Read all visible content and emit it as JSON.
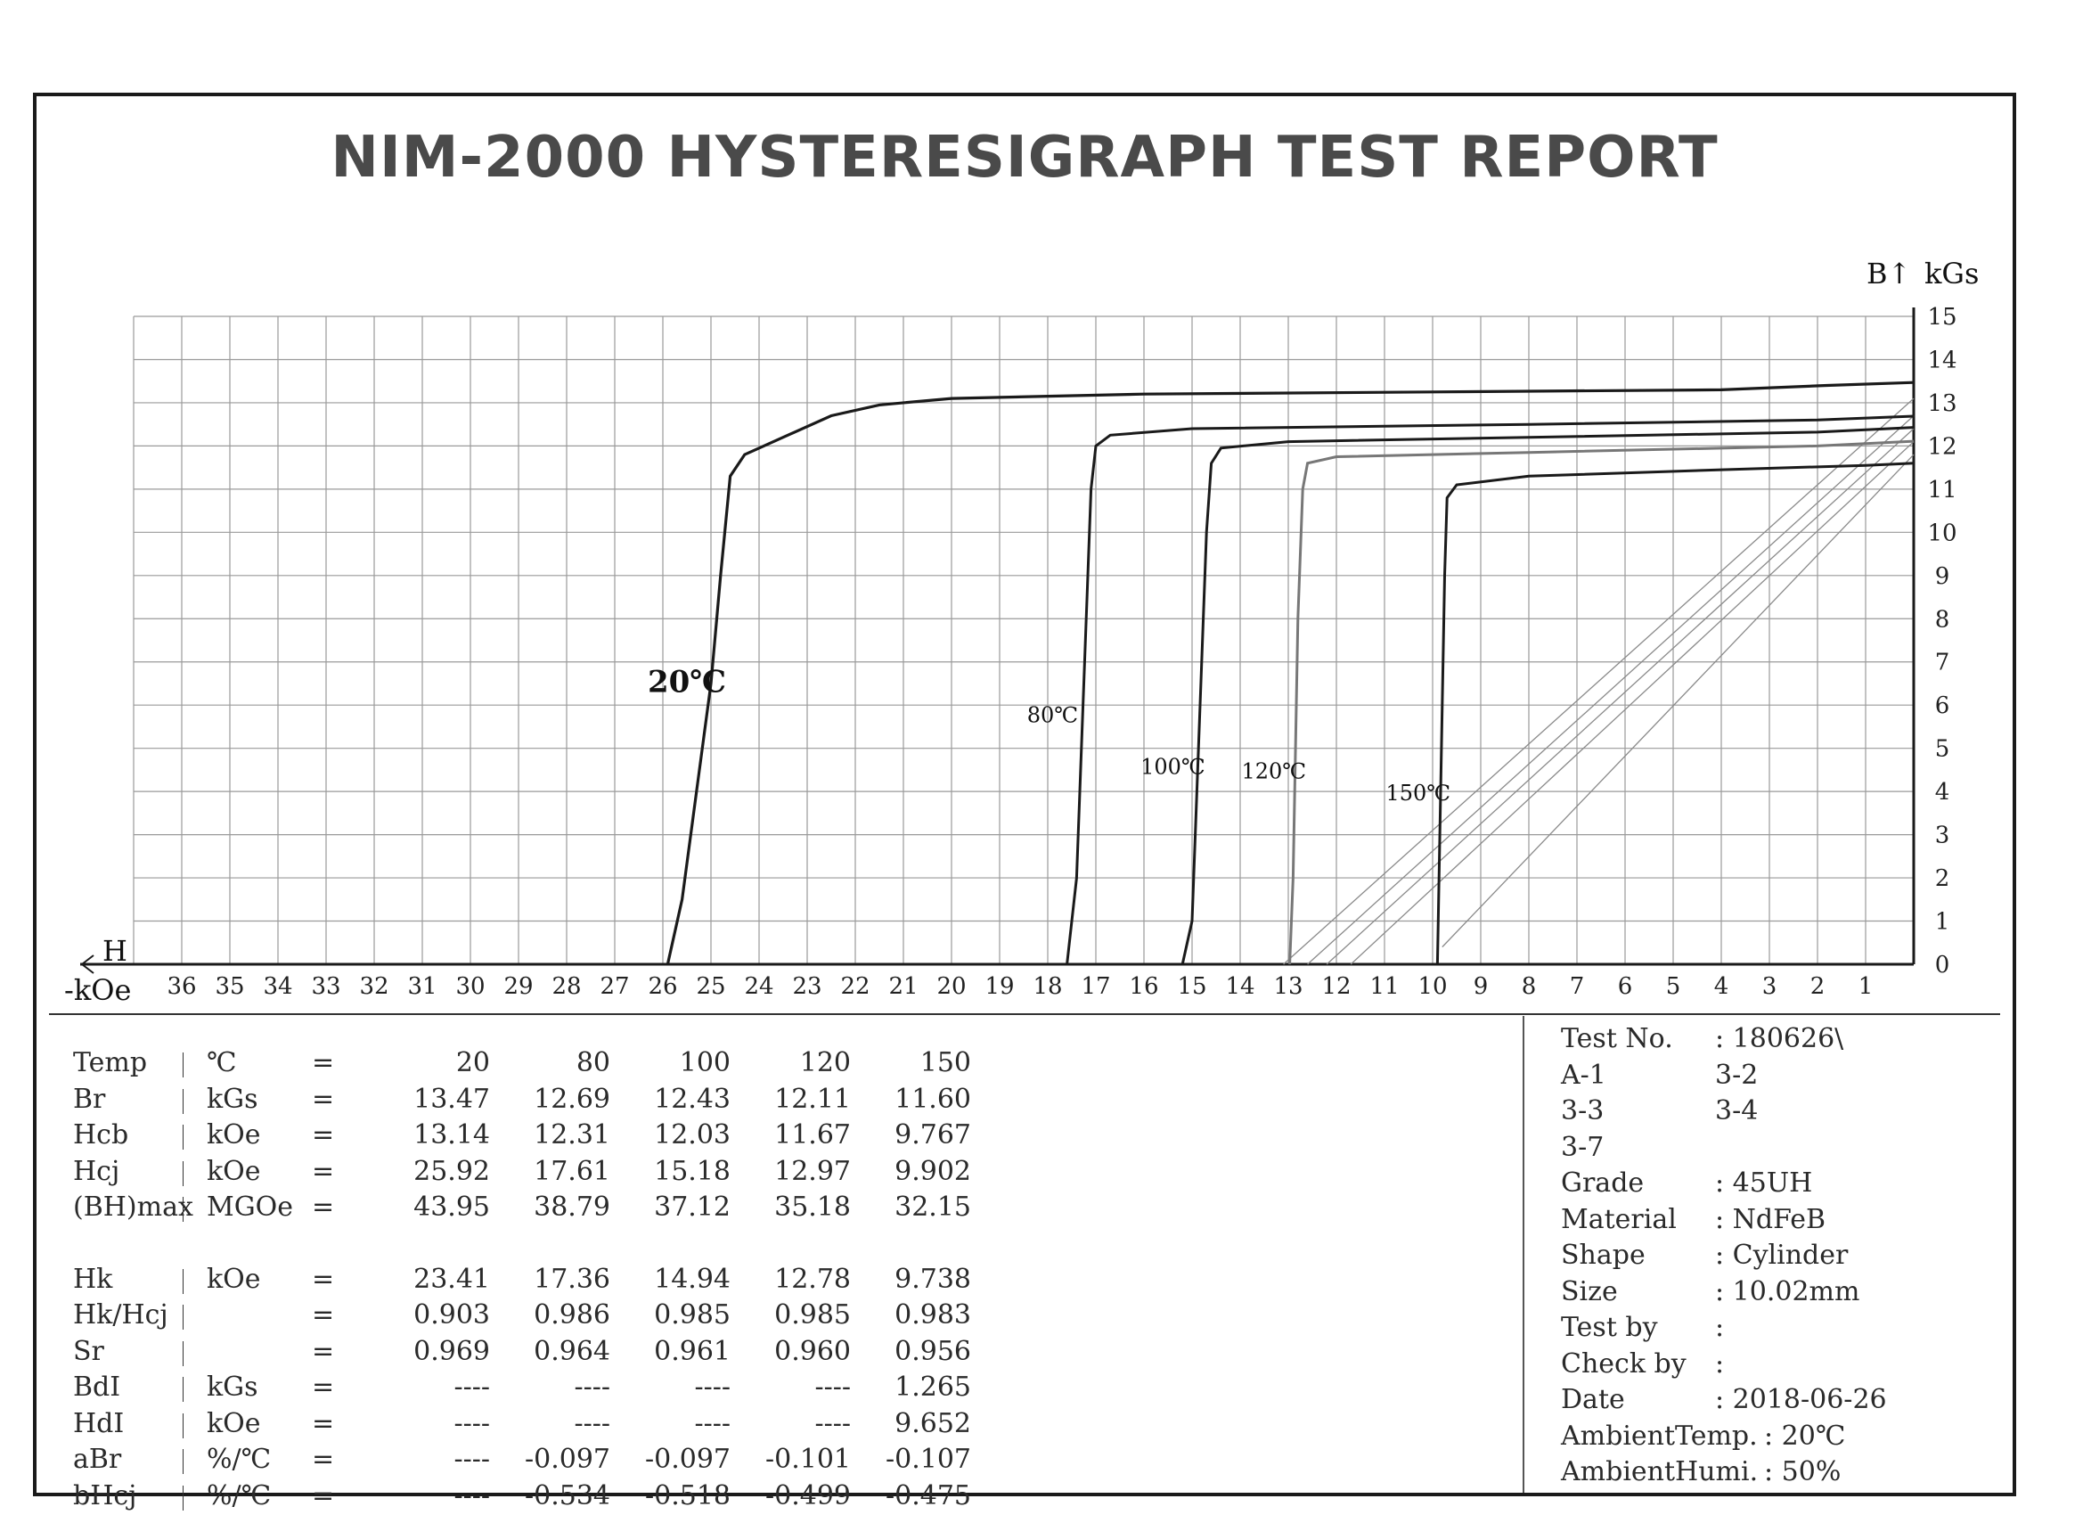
{
  "title": "NIM-2000 HYSTERESIGRAPH TEST REPORT",
  "chart_data": {
    "type": "line",
    "x_axis": {
      "label": "H",
      "unit": "-kOe",
      "range": [
        37,
        0
      ],
      "ticks": [
        36,
        35,
        34,
        33,
        32,
        31,
        30,
        29,
        28,
        27,
        26,
        25,
        24,
        23,
        22,
        21,
        20,
        19,
        18,
        17,
        16,
        15,
        14,
        13,
        12,
        11,
        10,
        9,
        8,
        7,
        6,
        5,
        4,
        3,
        2,
        1
      ]
    },
    "y_axis": {
      "label": "B↑",
      "unit": "kGs",
      "range": [
        0,
        15
      ],
      "ticks": [
        0,
        1,
        2,
        3,
        4,
        5,
        6,
        7,
        8,
        9,
        10,
        11,
        12,
        13,
        14,
        15
      ]
    },
    "grid": true,
    "series": [
      {
        "name": "20℃",
        "color": "#1a1a1a",
        "points": [
          [
            0,
            13.47
          ],
          [
            1.8,
            13.4
          ],
          [
            4,
            13.3
          ],
          [
            10,
            13.25
          ],
          [
            16,
            13.2
          ],
          [
            20,
            13.1
          ],
          [
            21.5,
            12.95
          ],
          [
            22.5,
            12.7
          ],
          [
            23.5,
            12.2
          ],
          [
            24.3,
            11.8
          ],
          [
            24.6,
            11.3
          ],
          [
            24.8,
            9
          ],
          [
            25.0,
            6.5
          ],
          [
            25.3,
            4
          ],
          [
            25.6,
            1.5
          ],
          [
            25.9,
            0
          ]
        ]
      },
      {
        "name": "80℃",
        "color": "#1a1a1a",
        "points": [
          [
            0,
            12.69
          ],
          [
            2,
            12.6
          ],
          [
            8,
            12.5
          ],
          [
            15,
            12.4
          ],
          [
            16.7,
            12.25
          ],
          [
            17.0,
            12.0
          ],
          [
            17.1,
            11
          ],
          [
            17.2,
            8
          ],
          [
            17.3,
            5
          ],
          [
            17.4,
            2
          ],
          [
            17.6,
            0
          ]
        ]
      },
      {
        "name": "100℃",
        "color": "#1a1a1a",
        "points": [
          [
            0,
            12.43
          ],
          [
            2,
            12.32
          ],
          [
            8,
            12.2
          ],
          [
            13,
            12.1
          ],
          [
            14.4,
            11.95
          ],
          [
            14.6,
            11.6
          ],
          [
            14.7,
            10
          ],
          [
            14.8,
            7
          ],
          [
            14.9,
            4
          ],
          [
            15.0,
            1
          ],
          [
            15.2,
            0
          ]
        ]
      },
      {
        "name": "120℃",
        "color": "#777777",
        "points": [
          [
            0,
            12.11
          ],
          [
            2,
            12.0
          ],
          [
            8,
            11.85
          ],
          [
            12,
            11.75
          ],
          [
            12.6,
            11.6
          ],
          [
            12.7,
            11
          ],
          [
            12.8,
            8
          ],
          [
            12.85,
            5
          ],
          [
            12.9,
            2
          ],
          [
            12.97,
            0
          ]
        ]
      },
      {
        "name": "150℃",
        "color": "#1a1a1a",
        "points": [
          [
            0,
            11.6
          ],
          [
            1,
            11.55
          ],
          [
            4,
            11.45
          ],
          [
            8,
            11.3
          ],
          [
            9.5,
            11.1
          ],
          [
            9.7,
            10.8
          ],
          [
            9.75,
            9
          ],
          [
            9.8,
            6
          ],
          [
            9.85,
            3
          ],
          [
            9.9,
            0
          ]
        ]
      }
    ],
    "recoil_lines": [
      {
        "from": [
          0,
          13.1
        ],
        "to": [
          13.1,
          0
        ]
      },
      {
        "from": [
          0,
          12.7
        ],
        "to": [
          12.6,
          0
        ]
      },
      {
        "from": [
          0,
          12.4
        ],
        "to": [
          12.2,
          0
        ]
      },
      {
        "from": [
          0,
          12.1
        ],
        "to": [
          11.7,
          0
        ]
      },
      {
        "from": [
          0,
          11.8
        ],
        "to": [
          9.8,
          0.4
        ]
      }
    ]
  },
  "results": {
    "rows": [
      {
        "name": "Temp",
        "unit": "℃",
        "eq": "=",
        "values": [
          "20",
          "80",
          "100",
          "120",
          "150"
        ]
      },
      {
        "name": "Br",
        "unit": "kGs",
        "eq": "=",
        "values": [
          "13.47",
          "12.69",
          "12.43",
          "12.11",
          "11.60"
        ]
      },
      {
        "name": "Hcb",
        "unit": "kOe",
        "eq": "=",
        "values": [
          "13.14",
          "12.31",
          "12.03",
          "11.67",
          "9.767"
        ]
      },
      {
        "name": "Hcj",
        "unit": "kOe",
        "eq": "=",
        "values": [
          "25.92",
          "17.61",
          "15.18",
          "12.97",
          "9.902"
        ]
      },
      {
        "name": "(BH)max",
        "unit": "MGOe",
        "eq": "=",
        "values": [
          "43.95",
          "38.79",
          "37.12",
          "35.18",
          "32.15"
        ]
      },
      {
        "name": "Hk",
        "unit": "kOe",
        "eq": "=",
        "values": [
          "23.41",
          "17.36",
          "14.94",
          "12.78",
          "9.738"
        ]
      },
      {
        "name": "Hk/Hcj",
        "unit": "",
        "eq": "=",
        "values": [
          "0.903",
          "0.986",
          "0.985",
          "0.985",
          "0.983"
        ]
      },
      {
        "name": "Sr",
        "unit": "",
        "eq": "=",
        "values": [
          "0.969",
          "0.964",
          "0.961",
          "0.960",
          "0.956"
        ]
      },
      {
        "name": "BdI",
        "unit": "kGs",
        "eq": "=",
        "values": [
          "----",
          "----",
          "----",
          "----",
          "1.265"
        ]
      },
      {
        "name": "HdI",
        "unit": "kOe",
        "eq": "=",
        "values": [
          "----",
          "----",
          "----",
          "----",
          "9.652"
        ]
      },
      {
        "name": "aBr",
        "unit": "%/℃",
        "eq": "=",
        "values": [
          "----",
          "-0.097",
          "-0.097",
          "-0.101",
          "-0.107"
        ]
      },
      {
        "name": "bHcj",
        "unit": "%/℃",
        "eq": "=",
        "values": [
          "----",
          "-0.534",
          "-0.518",
          "-0.499",
          "-0.475"
        ]
      }
    ]
  },
  "info": {
    "rows": [
      {
        "k": "Test No.",
        "v": ": 180626\\"
      },
      {
        "k": "A-1",
        "v": "  3-2"
      },
      {
        "k": "3-3",
        "v": "  3-4"
      },
      {
        "k": "3-7",
        "v": ""
      },
      {
        "k": "Grade",
        "v": ": 45UH"
      },
      {
        "k": "Material",
        "v": ": NdFeB"
      },
      {
        "k": "Shape",
        "v": ": Cylinder"
      },
      {
        "k": "Size",
        "v": ": 10.02mm"
      },
      {
        "k": "Test by",
        "v": ":"
      },
      {
        "k": "Check by",
        "v": ":"
      },
      {
        "k": "Date",
        "v": ": 2018-06-26"
      },
      {
        "k": "AmbientTemp.",
        "v": ": 20℃"
      },
      {
        "k": "AmbientHumi.",
        "v": ": 50%"
      }
    ]
  }
}
